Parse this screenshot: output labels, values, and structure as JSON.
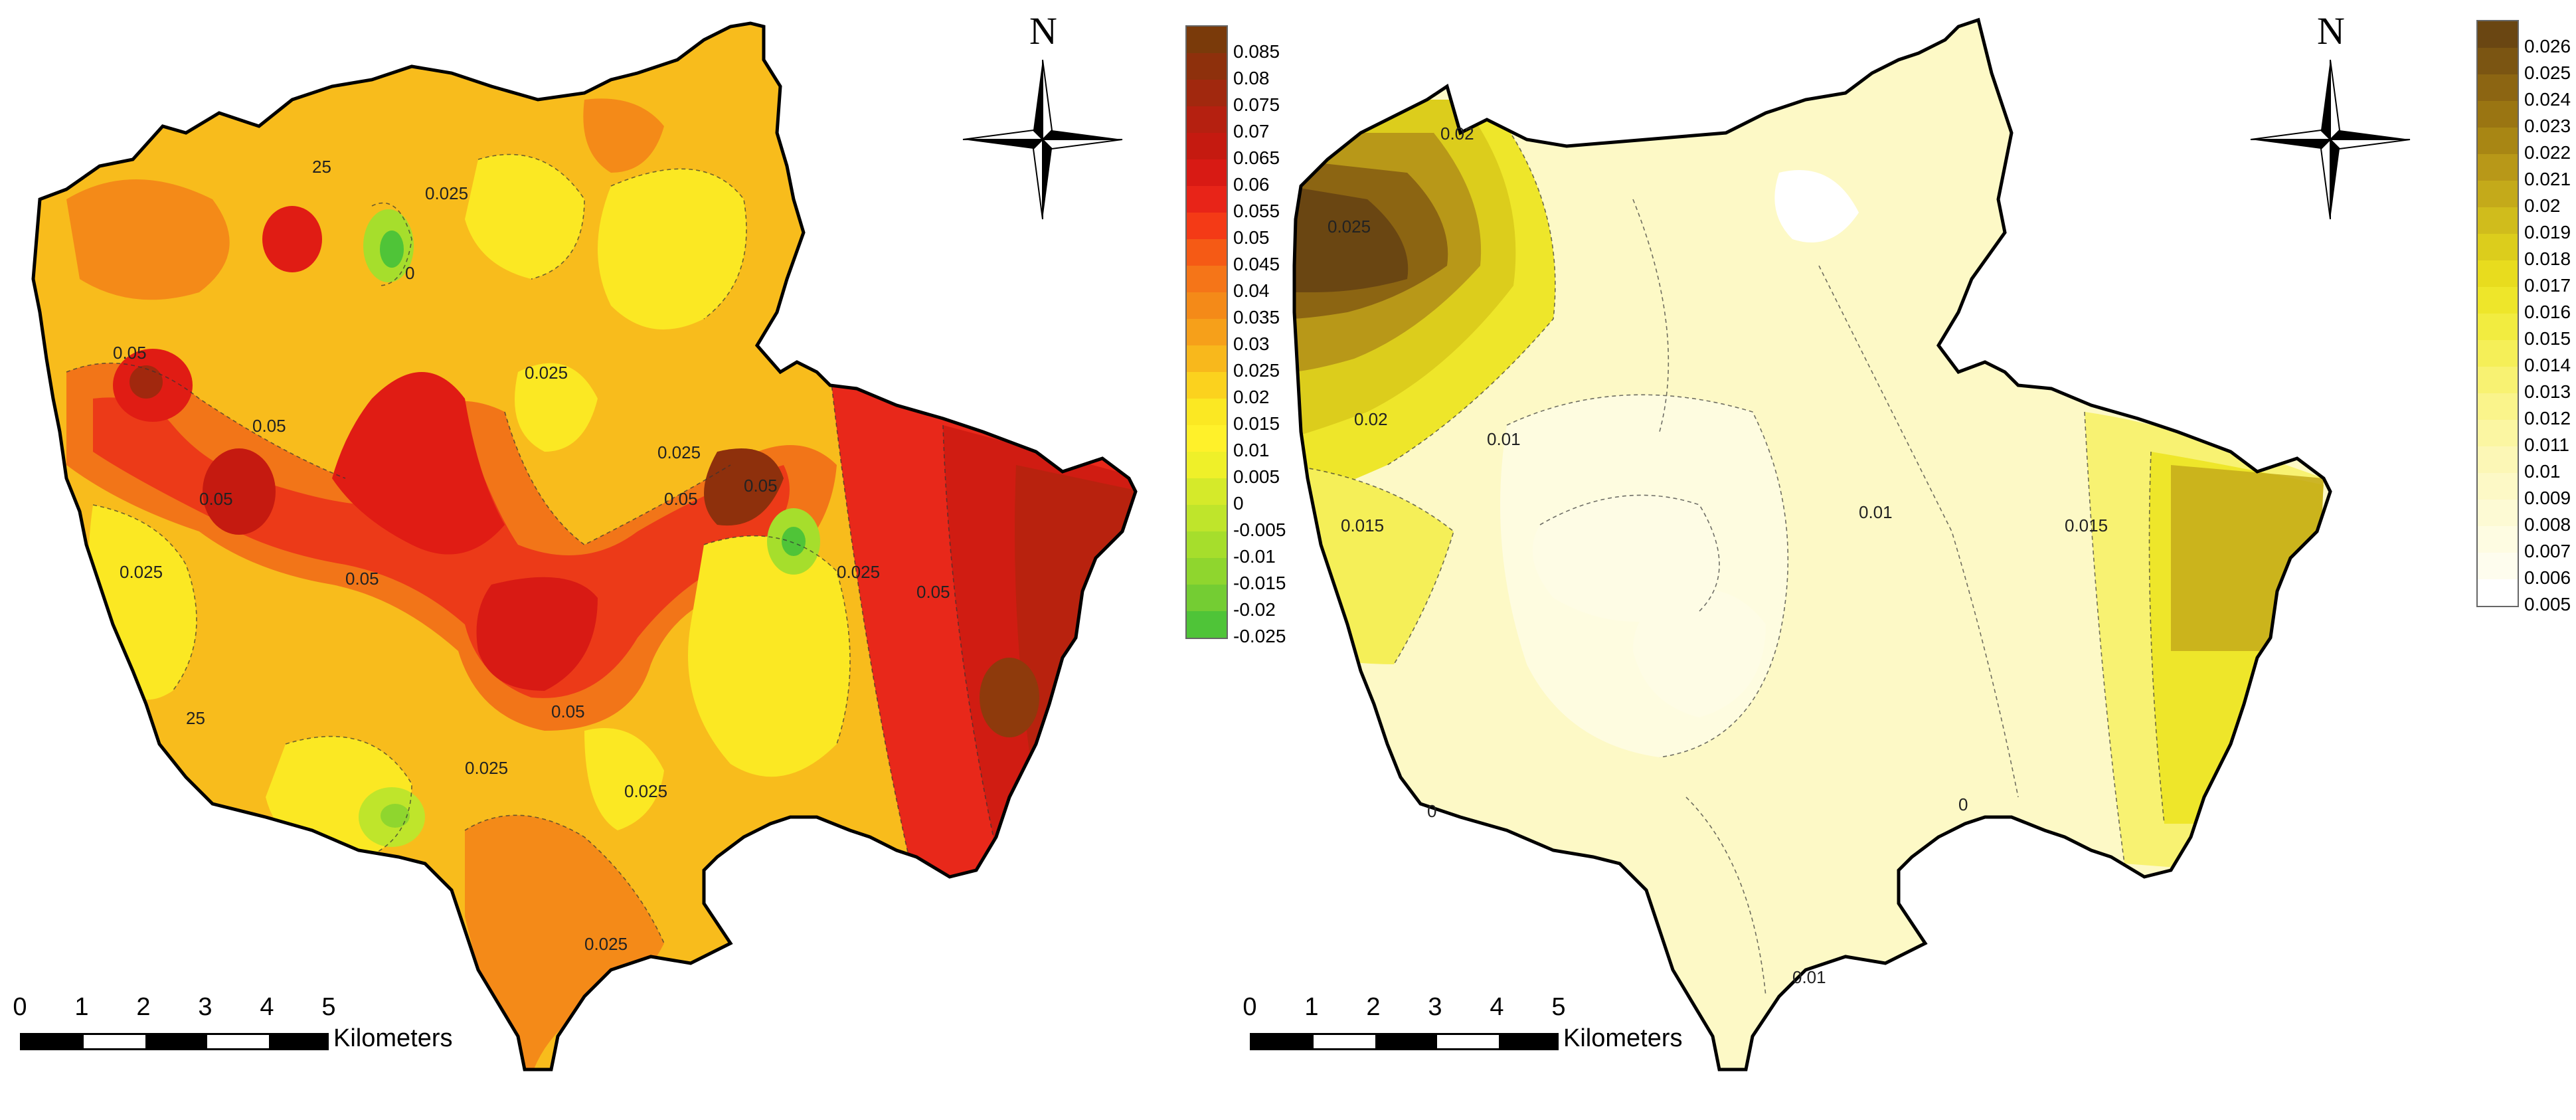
{
  "north_left": "N",
  "north_right": "N",
  "legend_left": {
    "labels": [
      "0.085",
      "0.08",
      "0.075",
      "0.07",
      "0.065",
      "0.06",
      "0.055",
      "0.05",
      "0.045",
      "0.04",
      "0.035",
      "0.03",
      "0.025",
      "0.02",
      "0.015",
      "0.01",
      "0.005",
      "0",
      "-0.005",
      "-0.01",
      "-0.015",
      "-0.02",
      "-0.025"
    ],
    "colors": [
      "#7a3a0a",
      "#8e300c",
      "#a1280e",
      "#b52010",
      "#c51a10",
      "#d81a14",
      "#e82418",
      "#f43a16",
      "#f55a15",
      "#f57518",
      "#f48a18",
      "#f6a01a",
      "#f8b81c",
      "#fbd21e",
      "#fbe823",
      "#fff12a",
      "#eff029",
      "#d5ea2a",
      "#bfe52b",
      "#a6de2c",
      "#8fd62e",
      "#74cd33",
      "#4fc438"
    ]
  },
  "legend_right": {
    "labels": [
      "0.026",
      "0.025",
      "0.024",
      "0.023",
      "0.022",
      "0.021",
      "0.02",
      "0.019",
      "0.018",
      "0.017",
      "0.016",
      "0.015",
      "0.014",
      "0.013",
      "0.012",
      "0.011",
      "0.01",
      "0.009",
      "0.008",
      "0.007",
      "0.006",
      "0.005"
    ],
    "colors": [
      "#6a4612",
      "#7b5512",
      "#8c6512",
      "#9a7512",
      "#a88614",
      "#b89818",
      "#c4aa1a",
      "#d0bc1c",
      "#dccd1c",
      "#e8dc1e",
      "#eee62a",
      "#f2ec40",
      "#f5ef58",
      "#f8f272",
      "#faf48b",
      "#fbf6a2",
      "#fcf7b6",
      "#fdf9c6",
      "#fdfad4",
      "#fefce2",
      "#fefdee",
      "#ffffff"
    ]
  },
  "scale_left": {
    "ticks": [
      "0",
      "1",
      "2",
      "3",
      "4",
      "5"
    ],
    "unit": "Kilometers"
  },
  "scale_right": {
    "ticks": [
      "0",
      "1",
      "2",
      "3",
      "4",
      "5"
    ],
    "unit": "Kilometers"
  },
  "contours_left": [
    "0.05",
    "0.025",
    "0.05",
    "0.05",
    "0.025",
    "0.05",
    "0.05",
    "0.025",
    "0.025",
    "0.05",
    "0.025",
    "0.025",
    "0.05",
    "0.05",
    "0.025",
    "0.025",
    "25",
    "25",
    "0"
  ],
  "contours_right": [
    "0.02",
    "0.025",
    "0.02",
    "0.01",
    "0.015",
    "0.01",
    "0.015",
    "0",
    "0",
    "0.01"
  ]
}
